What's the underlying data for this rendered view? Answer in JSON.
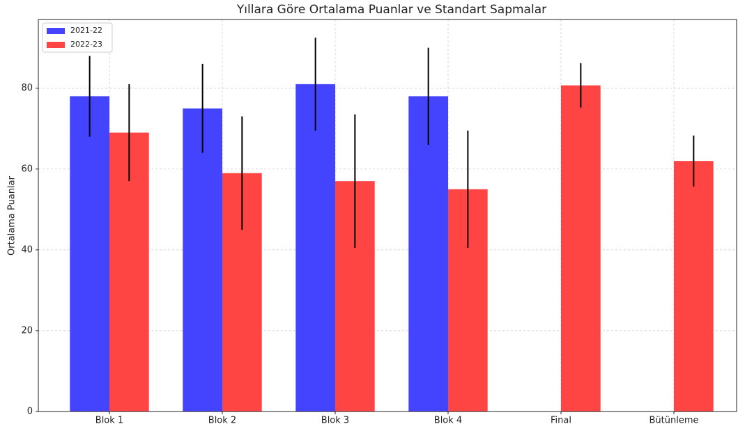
{
  "chart_data": {
    "type": "bar",
    "title": "Yıllara Göre Ortalama Puanlar ve Standart Sapmalar",
    "y_label": "Ortalama Puanlar",
    "categories": [
      "Blok 1",
      "Blok 2",
      "Blok 3",
      "Blok 4",
      "Final",
      "Bütünleme"
    ],
    "series": [
      {
        "name": "2021-22",
        "color": "#4444ff",
        "values": [
          78,
          75,
          81,
          78,
          null,
          null
        ],
        "errors": [
          10,
          11,
          11.5,
          12,
          null,
          null
        ]
      },
      {
        "name": "2022-23",
        "color": "#ff4444",
        "values": [
          69,
          59,
          57,
          55,
          80.7,
          62
        ],
        "errors": [
          12,
          14,
          16.5,
          14.5,
          5.5,
          6.3
        ]
      }
    ],
    "ylim": [
      0,
      97
    ],
    "yticks": [
      0,
      20,
      40,
      60,
      80
    ],
    "grid": true,
    "legend": "upper left"
  }
}
